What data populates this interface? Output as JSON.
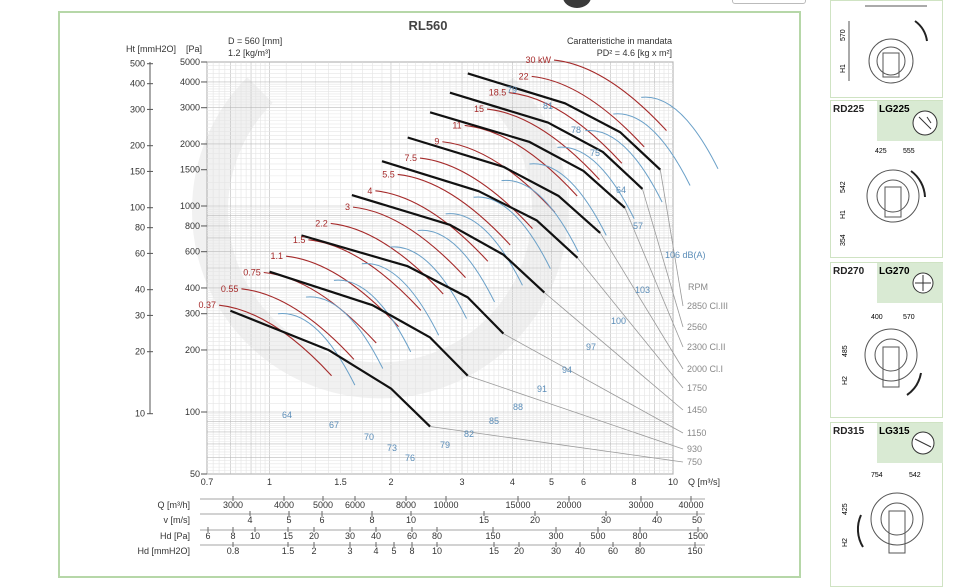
{
  "chart_data": {
    "type": "line",
    "title": "RL560",
    "spec_left": [
      "D = 560 [mm]",
      "1.2 [kg/m³]"
    ],
    "spec_right": [
      "Caratteristiche in mandata",
      "PD² = 4.6 [kg x m²]"
    ],
    "x_scale": "log",
    "y_scale": "log",
    "xlim": [
      0.7,
      10
    ],
    "ylim": [
      50,
      5000
    ],
    "x_ticks": [
      0.7,
      1,
      1.5,
      2,
      3,
      4,
      5,
      6,
      8,
      10
    ],
    "x_unit": "Q [m³/s]",
    "y_left_header": [
      "Ht [mmH2O]",
      "[Pa]"
    ],
    "y_pa_ticks": [
      50,
      100,
      200,
      300,
      400,
      600,
      800,
      1000,
      1500,
      2000,
      3000,
      4000,
      5000
    ],
    "y_mm_ticks": [
      10,
      20,
      30,
      40,
      60,
      80,
      100,
      150,
      200,
      300,
      400,
      500
    ],
    "grid": true,
    "series": [
      {
        "name": "750",
        "unit": "RPM",
        "points": [
          [
            0.8,
            310
          ],
          [
            1.4,
            200
          ],
          [
            2.0,
            130
          ],
          [
            2.5,
            85
          ]
        ]
      },
      {
        "name": "930",
        "points": [
          [
            1.0,
            480
          ],
          [
            1.8,
            330
          ],
          [
            2.5,
            230
          ],
          [
            3.1,
            150
          ]
        ]
      },
      {
        "name": "1150",
        "points": [
          [
            1.2,
            720
          ],
          [
            2.2,
            510
          ],
          [
            3.1,
            360
          ],
          [
            3.8,
            240
          ]
        ]
      },
      {
        "name": "1450",
        "points": [
          [
            1.6,
            1130
          ],
          [
            2.8,
            810
          ],
          [
            3.8,
            580
          ],
          [
            4.8,
            380
          ]
        ]
      },
      {
        "name": "1750",
        "points": [
          [
            1.9,
            1650
          ],
          [
            3.3,
            1180
          ],
          [
            4.6,
            850
          ],
          [
            5.8,
            560
          ]
        ]
      },
      {
        "name": "2000 Cl.I",
        "points": [
          [
            2.2,
            2150
          ],
          [
            3.8,
            1550
          ],
          [
            5.2,
            1120
          ],
          [
            6.6,
            740
          ]
        ]
      },
      {
        "name": "2300 Cl.II",
        "points": [
          [
            2.5,
            2850
          ],
          [
            4.4,
            2050
          ],
          [
            6.0,
            1480
          ],
          [
            7.6,
            980
          ]
        ]
      },
      {
        "name": "2560",
        "points": [
          [
            2.8,
            3550
          ],
          [
            4.9,
            2540
          ],
          [
            6.7,
            1830
          ],
          [
            8.4,
            1210
          ]
        ]
      },
      {
        "name": "2850 Cl.III",
        "points": [
          [
            3.1,
            4400
          ],
          [
            5.4,
            3150
          ],
          [
            7.4,
            2280
          ],
          [
            9.3,
            1500
          ]
        ]
      }
    ],
    "power_labels_kw": [
      "0.37",
      "0.55",
      "0.75",
      "1.1",
      "1.5",
      "2.2",
      "3",
      "4",
      "5.5",
      "7.5",
      "9",
      "11",
      "15",
      "18.5",
      "22",
      "30 kW"
    ],
    "noise_labels_dba": [
      "64",
      "67",
      "70",
      "73",
      "76",
      "79",
      "82",
      "85",
      "88",
      "91",
      "94",
      "97",
      "100",
      "103",
      "106 dB(A)",
      "57",
      "64",
      "75",
      "78",
      "81",
      "79"
    ],
    "rpm_header": "RPM",
    "bottom_scales": [
      {
        "label": "Q [m³/h]",
        "ticks": [
          "3000",
          "4000",
          "5000",
          "6000",
          "8000",
          "10000",
          "15000",
          "20000",
          "30000",
          "40000"
        ]
      },
      {
        "label": "v [m/s]",
        "ticks": [
          "4",
          "5",
          "6",
          "8",
          "10",
          "15",
          "20",
          "30",
          "40",
          "50"
        ]
      },
      {
        "label": "Hd [Pa]",
        "ticks": [
          "6",
          "8",
          "10",
          "15",
          "20",
          "30",
          "40",
          "60",
          "80",
          "150",
          "300",
          "500",
          "800",
          "1500"
        ]
      },
      {
        "label": "Hd [mmH2O]",
        "ticks": [
          "0.8",
          "1.5",
          "2",
          "3",
          "4",
          "5",
          "8",
          "10",
          "15",
          "20",
          "30",
          "40",
          "60",
          "80",
          "150"
        ]
      }
    ]
  },
  "cards": [
    {
      "rd": "",
      "lg": "",
      "dims": [
        "570",
        "H1"
      ]
    },
    {
      "rd": "RD225",
      "lg": "LG225",
      "dims": [
        "425",
        "555",
        "542",
        "H1",
        "354"
      ]
    },
    {
      "rd": "RD270",
      "lg": "LG270",
      "dims": [
        "400",
        "570",
        "485",
        "H2"
      ]
    },
    {
      "rd": "RD315",
      "lg": "LG315",
      "dims": [
        "754",
        "542",
        "425",
        "H2"
      ]
    }
  ]
}
